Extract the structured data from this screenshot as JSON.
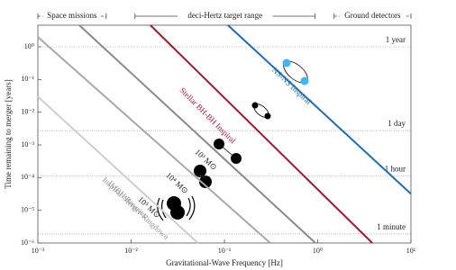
{
  "chart_data": {
    "type": "line",
    "x_label": "Gravitational-Wave Frequency [Hz]",
    "y_label": "Time remaining to merger [years]",
    "xscale": "log",
    "yscale": "log",
    "xlim": [
      0.001,
      10
    ],
    "ylim": [
      1e-06,
      4.6
    ],
    "xticks": [
      {
        "value": 0.001,
        "label": "10⁻³"
      },
      {
        "value": 0.01,
        "label": "10⁻²"
      },
      {
        "value": 0.1,
        "label": "10⁻¹"
      },
      {
        "value": 1,
        "label": "10⁰"
      },
      {
        "value": 10,
        "label": "10¹"
      }
    ],
    "yticks": [
      {
        "value": 1e-06,
        "label": "10⁻⁶"
      },
      {
        "value": 1e-05,
        "label": "10⁻⁵"
      },
      {
        "value": 0.0001,
        "label": "10⁻⁴"
      },
      {
        "value": 0.001,
        "label": "10⁻³"
      },
      {
        "value": 0.01,
        "label": "10⁻²"
      },
      {
        "value": 0.1,
        "label": "10⁻¹"
      },
      {
        "value": 1,
        "label": "10⁰"
      }
    ],
    "series": [
      {
        "color": "#cfcfcf",
        "x": [
          0.001,
          0.052
        ],
        "values": [
          0.03,
          1e-06
        ]
      },
      {
        "color": "#a8a8a8",
        "x": [
          0.001,
          0.31
        ],
        "values": [
          2,
          1e-06
        ]
      },
      {
        "color": "#8a8a8a",
        "x": [
          0.00278,
          0.946
        ],
        "values": [
          4.6,
          1e-06
        ]
      },
      {
        "color": "#9e1b32",
        "x": [
          0.0161,
          3.85
        ],
        "values": [
          4.6,
          1e-06
        ]
      },
      {
        "color": "#1f6fb0",
        "x": [
          0.109,
          10
        ],
        "values": [
          4.6,
          3.2e-05
        ]
      }
    ],
    "reference_lines": [
      {
        "label": "1 year",
        "value": 1
      },
      {
        "label": "1 day",
        "value": 0.00274
      },
      {
        "label": "1 hour",
        "value": 0.000114
      },
      {
        "label": "1 minute",
        "value": 1.9e-06
      }
    ],
    "bands": [
      {
        "label": "Space missions",
        "range": [
          0.001,
          0.0054
        ],
        "dashed": true
      },
      {
        "label": "deci-Hertz target range",
        "range": [
          0.011,
          0.94
        ],
        "dashed": false
      },
      {
        "label": "Ground detectors",
        "range": [
          1.5,
          10
        ],
        "dashed": true
      }
    ],
    "annotations": [
      {
        "text": "NS-NS Inspiral",
        "color": "#1f6fb0"
      },
      {
        "text": "Stellar BH-BH Inspiral",
        "color": "#9e1b32"
      },
      {
        "text": "10³ M⊙",
        "color": "#222"
      },
      {
        "text": "10⁴ M⊙",
        "color": "#222"
      },
      {
        "text": "10⁵ M⊙",
        "color": "#222"
      },
      {
        "text": "IMBH Binaries:",
        "color": "#999"
      },
      {
        "text": "Inspiral-Merger-Ringdown",
        "color": "#999"
      }
    ]
  }
}
